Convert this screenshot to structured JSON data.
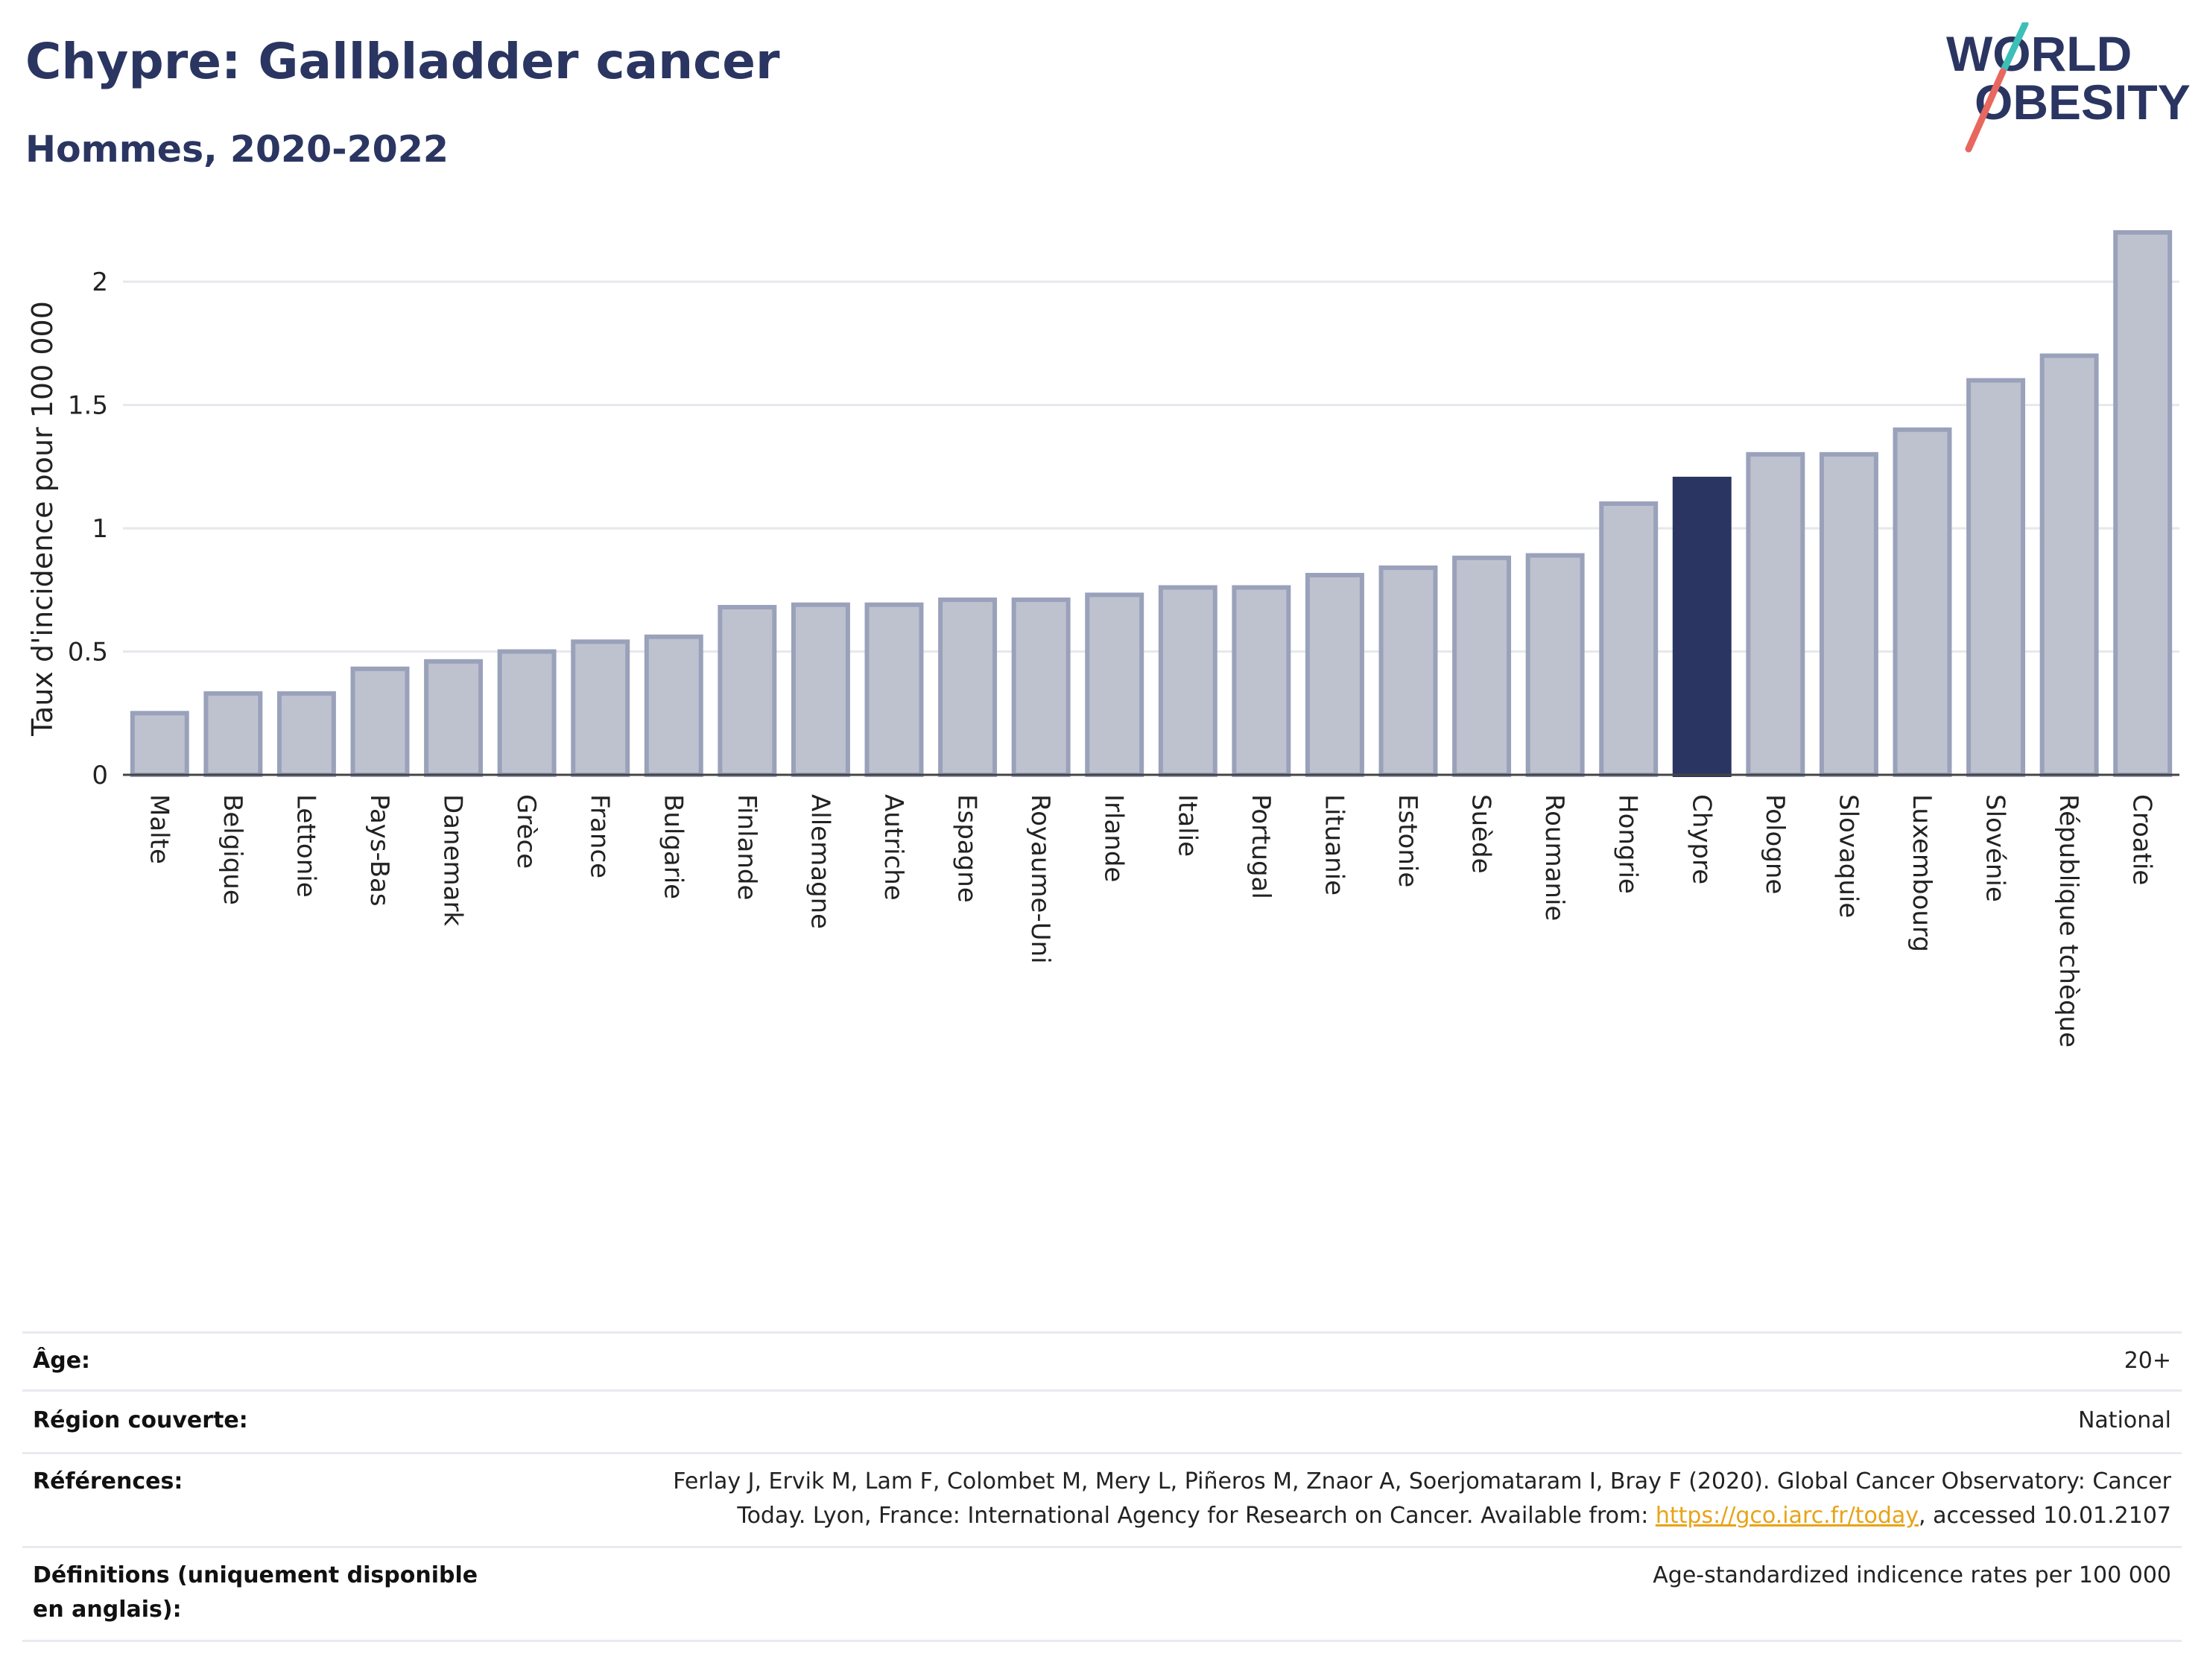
{
  "header": {
    "title": "Chypre: Gallbladder cancer",
    "subtitle": "Hommes, 2020-2022"
  },
  "logo": {
    "line1": "WORLD",
    "line2": "OBESITY"
  },
  "colors": {
    "accent": "#2a3561",
    "bar": "#bec2cf",
    "bar_border": "#9aa1ba",
    "logo_teal": "#3dbfb8",
    "logo_red": "#e8675f",
    "link": "#e8a317"
  },
  "chart_data": {
    "type": "bar",
    "title": "Chypre: Gallbladder cancer",
    "subtitle": "Hommes, 2020-2022",
    "xlabel": "",
    "ylabel": "Taux d'incidence pour 100 000",
    "ylim": [
      0,
      2.2
    ],
    "yticks": [
      0,
      0.5,
      1,
      1.5,
      2
    ],
    "ytick_labels": [
      "0",
      "0.5",
      "1",
      "1.5",
      "2"
    ],
    "grid": true,
    "highlight": "Chypre",
    "categories": [
      "Malte",
      "Belgique",
      "Lettonie",
      "Pays-Bas",
      "Danemark",
      "Grèce",
      "France",
      "Bulgarie",
      "Finlande",
      "Allemagne",
      "Autriche",
      "Espagne",
      "Royaume-Uni",
      "Irlande",
      "Italie",
      "Portugal",
      "Lituanie",
      "Estonie",
      "Suède",
      "Roumanie",
      "Hongrie",
      "Chypre",
      "Pologne",
      "Slovaquie",
      "Luxembourg",
      "Slovénie",
      "République tchèque",
      "Croatie"
    ],
    "values": [
      0.25,
      0.33,
      0.33,
      0.43,
      0.46,
      0.5,
      0.54,
      0.56,
      0.68,
      0.69,
      0.69,
      0.71,
      0.71,
      0.73,
      0.76,
      0.76,
      0.81,
      0.84,
      0.88,
      0.89,
      1.1,
      1.2,
      1.3,
      1.3,
      1.4,
      1.6,
      1.7,
      2.2
    ]
  },
  "info": {
    "age_label": "Âge:",
    "age_value": "20+",
    "region_label": "Région couverte:",
    "region_value": "National",
    "refs_label": "Références:",
    "refs_text_1": "Ferlay J, Ervik M, Lam F, Colombet M, Mery L, Piñeros M, Znaor A, Soerjomataram I, Bray F (2020). Global Cancer Observatory: Cancer",
    "refs_text_2": "Today. Lyon, France: International Agency for Research on Cancer. Available from: ",
    "refs_link": "https://gco.iarc.fr/today",
    "refs_text_3": ", accessed 10.01.2107",
    "defs_label": "Définitions (uniquement disponible en anglais):",
    "defs_value": "Age-standardized indicence rates per 100 000"
  }
}
